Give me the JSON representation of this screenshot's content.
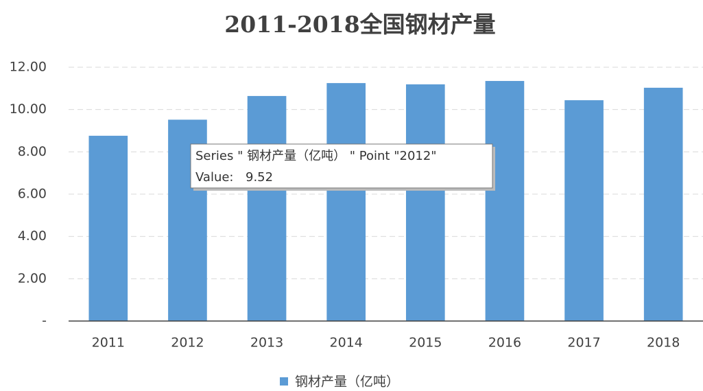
{
  "chart_data": {
    "type": "bar",
    "title": "2011-2018全国钢材产量",
    "categories": [
      "2011",
      "2012",
      "2013",
      "2014",
      "2015",
      "2016",
      "2017",
      "2018"
    ],
    "series": [
      {
        "name": "钢材产量（亿吨）",
        "color": "#5b9bd5",
        "values": [
          8.76,
          9.52,
          10.64,
          11.25,
          11.19,
          11.35,
          10.44,
          11.03
        ]
      }
    ],
    "ylim": [
      0,
      12
    ],
    "yticks": [
      {
        "value": 0,
        "label": "-"
      },
      {
        "value": 2,
        "label": "2.00"
      },
      {
        "value": 4,
        "label": "4.00"
      },
      {
        "value": 6,
        "label": "6.00"
      },
      {
        "value": 8,
        "label": "8.00"
      },
      {
        "value": 10,
        "label": "10.00"
      },
      {
        "value": 12,
        "label": "12.00"
      }
    ],
    "grid": true,
    "legend": "bottom",
    "tooltip": {
      "line1": "Series \" 钢材产量（亿吨） \" Point \"2012\"",
      "value_prefix": "Value:"
    }
  }
}
